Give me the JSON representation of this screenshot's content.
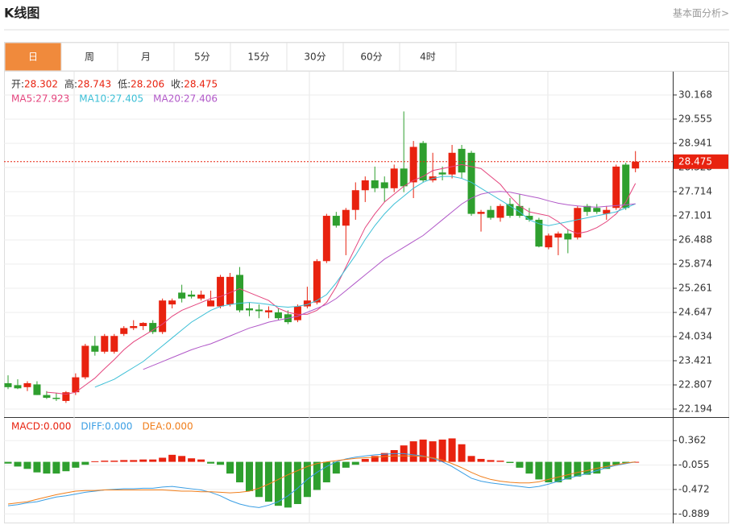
{
  "header": {
    "title": "K线图",
    "link": "基本面分析>"
  },
  "tabs": [
    "日",
    "周",
    "月",
    "5分",
    "15分",
    "30分",
    "60分",
    "4时"
  ],
  "active_tab": 0,
  "chart_data": [
    {
      "type": "candlestick",
      "info": [
        {
          "label": "开:",
          "value": 28.302
        },
        {
          "label": "高:",
          "value": 28.743
        },
        {
          "label": "低:",
          "value": 28.206
        },
        {
          "label": "收:",
          "value": 28.475
        }
      ],
      "open": [
        22.85,
        22.8,
        22.75,
        22.82,
        22.55,
        22.48,
        22.4,
        22.62,
        23.0,
        23.8,
        23.65,
        23.65,
        24.1,
        24.25,
        24.3,
        24.38,
        24.15,
        24.85,
        25.15,
        25.1,
        25.0,
        24.8,
        24.8,
        24.85,
        25.6,
        24.75,
        24.72,
        24.65,
        24.65,
        24.6,
        24.45,
        24.8,
        24.9,
        25.95,
        27.1,
        26.85,
        27.25,
        27.75,
        28.0,
        27.95,
        27.8,
        28.3,
        27.95,
        28.95,
        28.0,
        28.2,
        28.15,
        28.8,
        28.7,
        27.15,
        27.25,
        27.05,
        27.4,
        27.35,
        27.1,
        27.0,
        26.3,
        26.55,
        26.65,
        26.55,
        27.35,
        27.3,
        27.15,
        27.3,
        28.4,
        28.302
      ],
      "high": [
        23.05,
        22.95,
        22.9,
        22.9,
        22.65,
        22.6,
        22.65,
        23.1,
        23.85,
        24.05,
        24.1,
        24.1,
        24.3,
        24.45,
        24.4,
        24.45,
        25.0,
        25.0,
        25.35,
        25.2,
        25.2,
        25.2,
        25.6,
        25.65,
        25.8,
        24.9,
        24.85,
        24.8,
        24.75,
        24.7,
        24.85,
        25.3,
        26.0,
        27.15,
        27.2,
        27.3,
        27.95,
        28.1,
        28.35,
        28.1,
        28.4,
        29.75,
        29.0,
        29.0,
        28.7,
        28.35,
        28.9,
        28.9,
        28.75,
        27.25,
        27.35,
        27.4,
        27.55,
        27.65,
        27.3,
        27.05,
        26.65,
        26.7,
        26.75,
        27.35,
        27.4,
        27.4,
        27.35,
        28.4,
        28.45,
        28.743
      ],
      "low": [
        22.7,
        22.7,
        22.65,
        22.55,
        22.45,
        22.4,
        22.35,
        22.55,
        22.95,
        23.55,
        23.6,
        23.6,
        24.05,
        24.2,
        24.2,
        24.1,
        24.1,
        24.75,
        24.9,
        25.0,
        24.95,
        24.8,
        24.75,
        24.8,
        24.65,
        24.55,
        24.5,
        24.5,
        24.45,
        24.35,
        24.4,
        24.75,
        24.85,
        25.9,
        26.8,
        26.1,
        27.0,
        27.45,
        27.7,
        27.45,
        27.7,
        27.7,
        27.55,
        27.95,
        27.95,
        28.0,
        28.05,
        28.05,
        27.1,
        26.7,
        27.0,
        26.95,
        27.05,
        27.05,
        26.95,
        26.3,
        26.25,
        26.1,
        26.15,
        26.5,
        27.1,
        27.15,
        27.0,
        27.25,
        27.25,
        28.206
      ],
      "close": [
        22.75,
        22.72,
        22.85,
        22.55,
        22.48,
        22.45,
        22.62,
        23.0,
        23.8,
        23.65,
        24.05,
        24.05,
        24.25,
        24.3,
        24.38,
        24.15,
        24.95,
        24.95,
        25.0,
        25.05,
        25.1,
        24.95,
        25.55,
        25.55,
        24.7,
        24.7,
        24.68,
        24.7,
        24.5,
        24.4,
        24.8,
        24.95,
        25.95,
        27.1,
        26.85,
        27.25,
        27.75,
        28.0,
        27.8,
        27.8,
        28.3,
        27.85,
        28.85,
        28.0,
        28.1,
        28.15,
        28.7,
        28.2,
        27.15,
        27.2,
        27.05,
        27.35,
        27.1,
        27.1,
        27.0,
        26.32,
        26.6,
        26.65,
        26.5,
        27.3,
        27.2,
        27.2,
        27.25,
        28.35,
        27.3,
        28.475
      ],
      "up_color": "#e8220f",
      "down_color": "#2e9f2e",
      "series": [
        {
          "name": "MA5",
          "value_label": "27.923",
          "color": "#e4457e",
          "values": [
            null,
            null,
            null,
            null,
            22.62,
            22.6,
            22.57,
            22.62,
            22.8,
            22.98,
            23.22,
            23.45,
            23.7,
            23.9,
            24.05,
            24.2,
            24.35,
            24.55,
            24.7,
            24.8,
            24.9,
            25.0,
            25.05,
            25.15,
            25.25,
            25.15,
            25.05,
            24.95,
            24.75,
            24.65,
            24.6,
            24.6,
            24.7,
            24.9,
            25.3,
            25.8,
            26.3,
            26.8,
            27.15,
            27.45,
            27.65,
            27.85,
            28.0,
            28.1,
            28.25,
            28.3,
            28.35,
            28.4,
            28.35,
            28.3,
            28.1,
            27.9,
            27.6,
            27.35,
            27.2,
            27.15,
            27.1,
            26.95,
            26.75,
            26.65,
            26.7,
            26.8,
            26.95,
            27.15,
            27.45,
            27.923
          ]
        },
        {
          "name": "MA10",
          "value_label": "27.405",
          "color": "#3cbfd6",
          "values": [
            null,
            null,
            null,
            null,
            null,
            null,
            null,
            null,
            null,
            22.75,
            22.85,
            22.95,
            23.1,
            23.25,
            23.4,
            23.6,
            23.8,
            24.0,
            24.2,
            24.4,
            24.55,
            24.7,
            24.8,
            24.85,
            24.88,
            24.9,
            24.88,
            24.85,
            24.8,
            24.78,
            24.8,
            24.85,
            24.95,
            25.1,
            25.4,
            25.75,
            26.1,
            26.5,
            26.85,
            27.15,
            27.4,
            27.6,
            27.8,
            27.95,
            28.05,
            28.1,
            28.1,
            28.05,
            27.95,
            27.8,
            27.65,
            27.5,
            27.35,
            27.2,
            27.0,
            26.9,
            26.85,
            26.9,
            26.95,
            27.0,
            27.05,
            27.1,
            27.15,
            27.2,
            27.3,
            27.405
          ]
        },
        {
          "name": "MA20",
          "value_label": "27.406",
          "color": "#b158c8",
          "values": [
            null,
            null,
            null,
            null,
            null,
            null,
            null,
            null,
            null,
            null,
            null,
            null,
            null,
            null,
            23.2,
            23.3,
            23.4,
            23.5,
            23.6,
            23.7,
            23.78,
            23.85,
            23.95,
            24.05,
            24.15,
            24.25,
            24.32,
            24.4,
            24.45,
            24.5,
            24.55,
            24.65,
            24.75,
            24.85,
            25.0,
            25.2,
            25.4,
            25.6,
            25.8,
            26.0,
            26.15,
            26.3,
            26.45,
            26.6,
            26.8,
            27.0,
            27.2,
            27.4,
            27.55,
            27.65,
            27.7,
            27.72,
            27.7,
            27.65,
            27.6,
            27.55,
            27.48,
            27.42,
            27.38,
            27.35,
            27.33,
            27.32,
            27.34,
            27.36,
            27.38,
            27.406
          ]
        }
      ],
      "last_price": 28.475,
      "ylim": [
        21.99,
        30.76
      ],
      "yticks": [
        30.168,
        29.555,
        28.941,
        28.328,
        27.714,
        27.101,
        26.488,
        25.874,
        25.261,
        24.647,
        24.034,
        23.421,
        22.807,
        22.194
      ],
      "grid": true
    },
    {
      "type": "macd",
      "legend": [
        {
          "label": "MACD:",
          "value": 0,
          "value_label": "0.000",
          "color": "#e8220f"
        },
        {
          "label": "DIFF:",
          "value": 0,
          "value_label": "0.000",
          "color": "#3a9ee4"
        },
        {
          "label": "DEA:",
          "value": 0,
          "value_label": "0.000",
          "color": "#f07e1b"
        }
      ],
      "values": [
        -0.03,
        -0.08,
        -0.12,
        -0.18,
        -0.2,
        -0.2,
        -0.16,
        -0.1,
        -0.05,
        0.01,
        0.02,
        0.02,
        0.03,
        0.03,
        0.04,
        0.04,
        0.07,
        0.12,
        0.1,
        0.06,
        0.04,
        -0.03,
        -0.05,
        -0.2,
        -0.35,
        -0.5,
        -0.6,
        -0.68,
        -0.75,
        -0.78,
        -0.72,
        -0.6,
        -0.48,
        -0.35,
        -0.2,
        -0.1,
        -0.05,
        0.05,
        0.1,
        0.15,
        0.2,
        0.28,
        0.35,
        0.38,
        0.35,
        0.38,
        0.4,
        0.3,
        0.1,
        0.05,
        0.03,
        0.02,
        -0.02,
        -0.1,
        -0.2,
        -0.3,
        -0.35,
        -0.35,
        -0.3,
        -0.25,
        -0.22,
        -0.2,
        -0.12,
        -0.05,
        -0.02,
        0.0
      ],
      "up_color": "#e8220f",
      "down_color": "#2e9f2e",
      "series": [
        {
          "name": "DIFF",
          "color": "#3a9ee4",
          "values": [
            -0.75,
            -0.73,
            -0.7,
            -0.68,
            -0.64,
            -0.6,
            -0.58,
            -0.55,
            -0.52,
            -0.5,
            -0.48,
            -0.47,
            -0.46,
            -0.46,
            -0.45,
            -0.45,
            -0.43,
            -0.42,
            -0.44,
            -0.46,
            -0.48,
            -0.52,
            -0.58,
            -0.66,
            -0.72,
            -0.76,
            -0.78,
            -0.74,
            -0.68,
            -0.58,
            -0.45,
            -0.3,
            -0.18,
            -0.08,
            0.0,
            0.05,
            0.08,
            0.1,
            0.12,
            0.13,
            0.14,
            0.14,
            0.12,
            0.1,
            0.06,
            0.0,
            -0.08,
            -0.18,
            -0.28,
            -0.33,
            -0.36,
            -0.38,
            -0.4,
            -0.42,
            -0.44,
            -0.42,
            -0.38,
            -0.33,
            -0.28,
            -0.24,
            -0.2,
            -0.15,
            -0.1,
            -0.06,
            -0.03,
            0.0
          ]
        },
        {
          "name": "DEA",
          "color": "#f07e1b",
          "values": [
            -0.72,
            -0.7,
            -0.68,
            -0.64,
            -0.6,
            -0.56,
            -0.53,
            -0.5,
            -0.49,
            -0.49,
            -0.48,
            -0.48,
            -0.48,
            -0.48,
            -0.48,
            -0.48,
            -0.48,
            -0.49,
            -0.5,
            -0.5,
            -0.51,
            -0.51,
            -0.52,
            -0.53,
            -0.52,
            -0.5,
            -0.45,
            -0.38,
            -0.3,
            -0.22,
            -0.15,
            -0.08,
            -0.03,
            0.0,
            0.02,
            0.04,
            0.06,
            0.07,
            0.08,
            0.09,
            0.1,
            0.1,
            0.1,
            0.09,
            0.07,
            0.03,
            -0.03,
            -0.1,
            -0.18,
            -0.25,
            -0.3,
            -0.33,
            -0.35,
            -0.36,
            -0.36,
            -0.34,
            -0.3,
            -0.26,
            -0.22,
            -0.18,
            -0.15,
            -0.11,
            -0.08,
            -0.05,
            -0.02,
            0.0
          ]
        }
      ],
      "ylim": [
        -1.05,
        0.75
      ],
      "yticks": [
        0.362,
        -0.055,
        -0.472,
        -0.889
      ],
      "grid": true
    }
  ]
}
